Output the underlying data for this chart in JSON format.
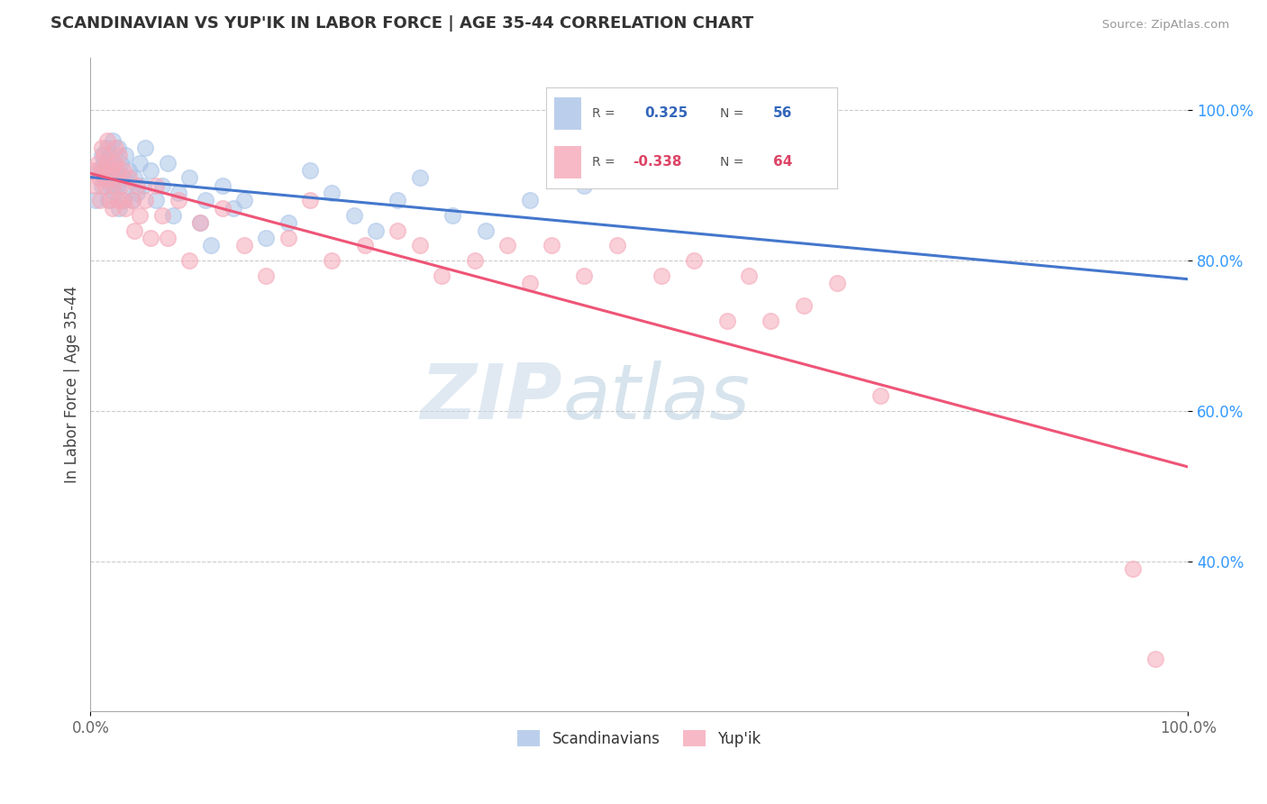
{
  "title": "SCANDINAVIAN VS YUP'IK IN LABOR FORCE | AGE 35-44 CORRELATION CHART",
  "source_text": "Source: ZipAtlas.com",
  "ylabel": "In Labor Force | Age 35-44",
  "xlim": [
    0.0,
    1.0
  ],
  "ylim": [
    0.2,
    1.07
  ],
  "grid_color": "#cccccc",
  "background_color": "#ffffff",
  "r_scandinavian": 0.325,
  "n_scandinavian": 56,
  "r_yupik": -0.338,
  "n_yupik": 64,
  "legend_entries": [
    "Scandinavians",
    "Yup'ik"
  ],
  "blue_color": "#aac4e8",
  "pink_color": "#f5a8b8",
  "blue_line_color": "#4477cc",
  "pink_line_color": "#ee5577",
  "blue_text_color": "#3366bb",
  "pink_text_color": "#dd4466",
  "watermark_zip": "ZIP",
  "watermark_atlas": "atlas",
  "scandinavian_x": [
    0.005,
    0.008,
    0.01,
    0.01,
    0.012,
    0.013,
    0.015,
    0.015,
    0.016,
    0.018,
    0.019,
    0.02,
    0.02,
    0.021,
    0.022,
    0.023,
    0.025,
    0.025,
    0.026,
    0.028,
    0.03,
    0.03,
    0.032,
    0.033,
    0.035,
    0.038,
    0.04,
    0.042,
    0.045,
    0.048,
    0.05,
    0.055,
    0.06,
    0.065,
    0.07,
    0.075,
    0.08,
    0.09,
    0.1,
    0.105,
    0.11,
    0.12,
    0.13,
    0.14,
    0.16,
    0.18,
    0.2,
    0.22,
    0.24,
    0.26,
    0.28,
    0.3,
    0.33,
    0.36,
    0.4,
    0.45
  ],
  "scandinavian_y": [
    0.88,
    0.92,
    0.94,
    0.9,
    0.93,
    0.91,
    0.95,
    0.92,
    0.88,
    0.94,
    0.9,
    0.96,
    0.93,
    0.91,
    0.89,
    0.92,
    0.95,
    0.9,
    0.87,
    0.93,
    0.91,
    0.88,
    0.94,
    0.9,
    0.92,
    0.88,
    0.91,
    0.89,
    0.93,
    0.9,
    0.95,
    0.92,
    0.88,
    0.9,
    0.93,
    0.86,
    0.89,
    0.91,
    0.85,
    0.88,
    0.82,
    0.9,
    0.87,
    0.88,
    0.83,
    0.85,
    0.92,
    0.89,
    0.86,
    0.84,
    0.88,
    0.91,
    0.86,
    0.84,
    0.88,
    0.9
  ],
  "yupik_x": [
    0.003,
    0.005,
    0.007,
    0.008,
    0.009,
    0.01,
    0.01,
    0.012,
    0.013,
    0.015,
    0.015,
    0.016,
    0.018,
    0.019,
    0.02,
    0.02,
    0.022,
    0.023,
    0.025,
    0.025,
    0.026,
    0.028,
    0.03,
    0.03,
    0.032,
    0.035,
    0.038,
    0.04,
    0.042,
    0.045,
    0.05,
    0.055,
    0.06,
    0.065,
    0.07,
    0.08,
    0.09,
    0.1,
    0.12,
    0.14,
    0.16,
    0.18,
    0.2,
    0.22,
    0.25,
    0.28,
    0.3,
    0.32,
    0.35,
    0.38,
    0.4,
    0.42,
    0.45,
    0.48,
    0.52,
    0.55,
    0.58,
    0.6,
    0.62,
    0.65,
    0.68,
    0.72,
    0.95,
    0.97
  ],
  "yupik_y": [
    0.92,
    0.9,
    0.93,
    0.91,
    0.88,
    0.95,
    0.92,
    0.94,
    0.9,
    0.96,
    0.93,
    0.91,
    0.88,
    0.92,
    0.9,
    0.87,
    0.93,
    0.95,
    0.92,
    0.88,
    0.94,
    0.9,
    0.88,
    0.92,
    0.87,
    0.91,
    0.88,
    0.84,
    0.9,
    0.86,
    0.88,
    0.83,
    0.9,
    0.86,
    0.83,
    0.88,
    0.8,
    0.85,
    0.87,
    0.82,
    0.78,
    0.83,
    0.88,
    0.8,
    0.82,
    0.84,
    0.82,
    0.78,
    0.8,
    0.82,
    0.77,
    0.82,
    0.78,
    0.82,
    0.78,
    0.8,
    0.72,
    0.78,
    0.72,
    0.74,
    0.77,
    0.62,
    0.39,
    0.27
  ]
}
